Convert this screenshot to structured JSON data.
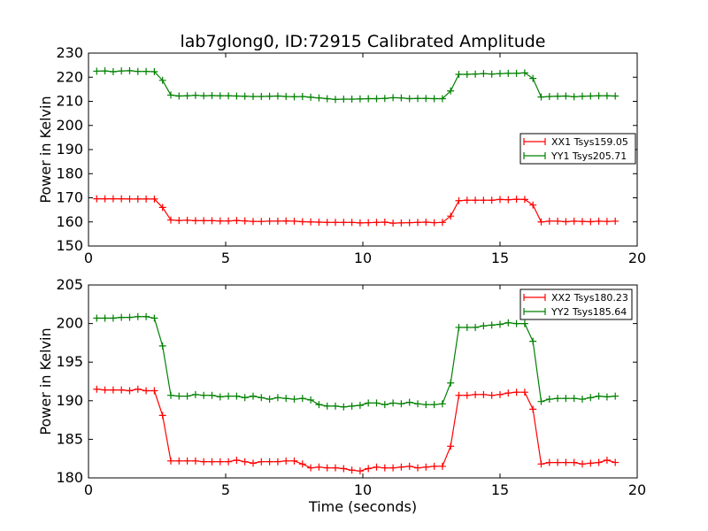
{
  "title": "lab7glong0, ID:72915 Calibrated Amplitude",
  "chart_data": [
    {
      "type": "line",
      "title": "lab7glong0, ID:72915 Calibrated Amplitude",
      "xlabel": "",
      "ylabel": "Power in Kelvin",
      "xlim": [
        0,
        20
      ],
      "ylim": [
        150,
        230
      ],
      "xticks": [
        0,
        5,
        10,
        15,
        20
      ],
      "yticks": [
        150,
        160,
        170,
        180,
        190,
        200,
        210,
        220,
        230
      ],
      "grid": false,
      "legend_position": "center-right",
      "series": [
        {
          "name": "XX1 Tsys159.05",
          "color": "#ff0000",
          "marker": "plus",
          "x": [
            0.3,
            0.6,
            0.9,
            1.2,
            1.5,
            1.8,
            2.1,
            2.4,
            2.7,
            3.0,
            3.3,
            3.6,
            3.9,
            4.2,
            4.5,
            4.8,
            5.1,
            5.4,
            5.7,
            6.0,
            6.3,
            6.6,
            6.9,
            7.2,
            7.5,
            7.8,
            8.1,
            8.4,
            8.7,
            9.0,
            9.3,
            9.6,
            9.9,
            10.2,
            10.5,
            10.8,
            11.1,
            11.4,
            11.7,
            12.0,
            12.3,
            12.6,
            12.9,
            13.2,
            13.5,
            13.8,
            14.1,
            14.4,
            14.7,
            15.0,
            15.3,
            15.6,
            15.9,
            16.2,
            16.5,
            16.8,
            17.1,
            17.4,
            17.7,
            18.0,
            18.3,
            18.6,
            18.9,
            19.2
          ],
          "y": [
            169.6,
            169.6,
            169.6,
            169.6,
            169.5,
            169.5,
            169.5,
            169.5,
            166.0,
            160.8,
            160.6,
            160.7,
            160.5,
            160.5,
            160.5,
            160.4,
            160.4,
            160.6,
            160.4,
            160.2,
            160.2,
            160.3,
            160.3,
            160.4,
            160.3,
            160.1,
            160.0,
            159.9,
            159.8,
            159.8,
            159.8,
            159.8,
            159.6,
            159.7,
            159.8,
            159.9,
            159.5,
            159.6,
            159.7,
            159.8,
            159.9,
            159.7,
            159.8,
            162.4,
            168.8,
            169.0,
            169.0,
            169.0,
            169.0,
            169.3,
            169.2,
            169.4,
            169.3,
            167.0,
            160.0,
            160.3,
            160.3,
            160.1,
            160.3,
            160.2,
            160.1,
            160.3,
            160.2,
            160.3
          ]
        },
        {
          "name": "YY1 Tsys205.71",
          "color": "#008000",
          "marker": "plus",
          "x": [
            0.3,
            0.6,
            0.9,
            1.2,
            1.5,
            1.8,
            2.1,
            2.4,
            2.7,
            3.0,
            3.3,
            3.6,
            3.9,
            4.2,
            4.5,
            4.8,
            5.1,
            5.4,
            5.7,
            6.0,
            6.3,
            6.6,
            6.9,
            7.2,
            7.5,
            7.8,
            8.1,
            8.4,
            8.7,
            9.0,
            9.3,
            9.6,
            9.9,
            10.2,
            10.5,
            10.8,
            11.1,
            11.4,
            11.7,
            12.0,
            12.3,
            12.6,
            12.9,
            13.2,
            13.5,
            13.8,
            14.1,
            14.4,
            14.7,
            15.0,
            15.3,
            15.6,
            15.9,
            16.2,
            16.5,
            16.8,
            17.1,
            17.4,
            17.7,
            18.0,
            18.3,
            18.6,
            18.9,
            19.2
          ],
          "y": [
            222.5,
            222.6,
            222.3,
            222.6,
            222.7,
            222.4,
            222.4,
            222.3,
            218.7,
            212.6,
            212.2,
            212.3,
            212.5,
            212.3,
            212.4,
            212.3,
            212.3,
            212.2,
            212.1,
            212.0,
            212.0,
            212.1,
            212.2,
            212.0,
            211.9,
            212.0,
            211.7,
            211.4,
            211.1,
            210.8,
            210.9,
            210.9,
            211.0,
            211.1,
            211.1,
            211.2,
            211.5,
            211.4,
            211.1,
            211.2,
            211.2,
            211.1,
            211.1,
            214.3,
            221.2,
            221.2,
            221.3,
            221.5,
            221.3,
            221.5,
            221.6,
            221.6,
            221.8,
            219.5,
            211.8,
            212.0,
            212.1,
            212.2,
            211.9,
            212.1,
            212.2,
            212.3,
            212.3,
            212.2
          ]
        }
      ]
    },
    {
      "type": "line",
      "title": "",
      "xlabel": "Time (seconds)",
      "ylabel": "Power in Kelvin",
      "xlim": [
        0,
        20
      ],
      "ylim": [
        180,
        205
      ],
      "xticks": [
        0,
        5,
        10,
        15,
        20
      ],
      "yticks": [
        180,
        185,
        190,
        195,
        200,
        205
      ],
      "grid": false,
      "legend_position": "top-right",
      "series": [
        {
          "name": "XX2 Tsys180.23",
          "color": "#ff0000",
          "marker": "plus",
          "x": [
            0.3,
            0.6,
            0.9,
            1.2,
            1.5,
            1.8,
            2.1,
            2.4,
            2.7,
            3.0,
            3.3,
            3.6,
            3.9,
            4.2,
            4.5,
            4.8,
            5.1,
            5.4,
            5.7,
            6.0,
            6.3,
            6.6,
            6.9,
            7.2,
            7.5,
            7.8,
            8.1,
            8.4,
            8.7,
            9.0,
            9.3,
            9.6,
            9.9,
            10.2,
            10.5,
            10.8,
            11.1,
            11.4,
            11.7,
            12.0,
            12.3,
            12.6,
            12.9,
            13.2,
            13.5,
            13.8,
            14.1,
            14.4,
            14.7,
            15.0,
            15.3,
            15.6,
            15.9,
            16.2,
            16.5,
            16.8,
            17.1,
            17.4,
            17.7,
            18.0,
            18.3,
            18.6,
            18.9,
            19.2
          ],
          "y": [
            191.5,
            191.4,
            191.4,
            191.4,
            191.3,
            191.5,
            191.3,
            191.3,
            188.1,
            182.2,
            182.2,
            182.2,
            182.2,
            182.1,
            182.1,
            182.1,
            182.1,
            182.3,
            182.1,
            181.9,
            182.1,
            182.1,
            182.1,
            182.2,
            182.2,
            181.8,
            181.3,
            181.4,
            181.3,
            181.3,
            181.2,
            181.0,
            180.9,
            181.2,
            181.4,
            181.3,
            181.3,
            181.4,
            181.5,
            181.3,
            181.4,
            181.5,
            181.5,
            184.1,
            190.7,
            190.7,
            190.8,
            190.8,
            190.7,
            190.8,
            191.0,
            191.1,
            191.1,
            188.9,
            181.8,
            182.0,
            182.0,
            182.0,
            182.0,
            181.8,
            181.9,
            182.0,
            182.3,
            182.0
          ]
        },
        {
          "name": "YY2 Tsys185.64",
          "color": "#008000",
          "marker": "plus",
          "x": [
            0.3,
            0.6,
            0.9,
            1.2,
            1.5,
            1.8,
            2.1,
            2.4,
            2.7,
            3.0,
            3.3,
            3.6,
            3.9,
            4.2,
            4.5,
            4.8,
            5.1,
            5.4,
            5.7,
            6.0,
            6.3,
            6.6,
            6.9,
            7.2,
            7.5,
            7.8,
            8.1,
            8.4,
            8.7,
            9.0,
            9.3,
            9.6,
            9.9,
            10.2,
            10.5,
            10.8,
            11.1,
            11.4,
            11.7,
            12.0,
            12.3,
            12.6,
            12.9,
            13.2,
            13.5,
            13.8,
            14.1,
            14.4,
            14.7,
            15.0,
            15.3,
            15.6,
            15.9,
            16.2,
            16.5,
            16.8,
            17.1,
            17.4,
            17.7,
            18.0,
            18.3,
            18.6,
            18.9,
            19.2
          ],
          "y": [
            200.7,
            200.7,
            200.7,
            200.8,
            200.8,
            200.9,
            200.9,
            200.7,
            197.1,
            190.7,
            190.6,
            190.6,
            190.8,
            190.7,
            190.7,
            190.5,
            190.6,
            190.6,
            190.4,
            190.6,
            190.4,
            190.2,
            190.4,
            190.3,
            190.2,
            190.3,
            190.1,
            189.5,
            189.3,
            189.3,
            189.2,
            189.3,
            189.4,
            189.7,
            189.7,
            189.5,
            189.7,
            189.6,
            189.8,
            189.6,
            189.5,
            189.5,
            189.6,
            192.3,
            199.5,
            199.5,
            199.5,
            199.7,
            199.8,
            199.9,
            200.1,
            200.0,
            200.0,
            197.7,
            189.9,
            190.2,
            190.3,
            190.3,
            190.3,
            190.2,
            190.4,
            190.6,
            190.5,
            190.6
          ]
        }
      ]
    }
  ]
}
